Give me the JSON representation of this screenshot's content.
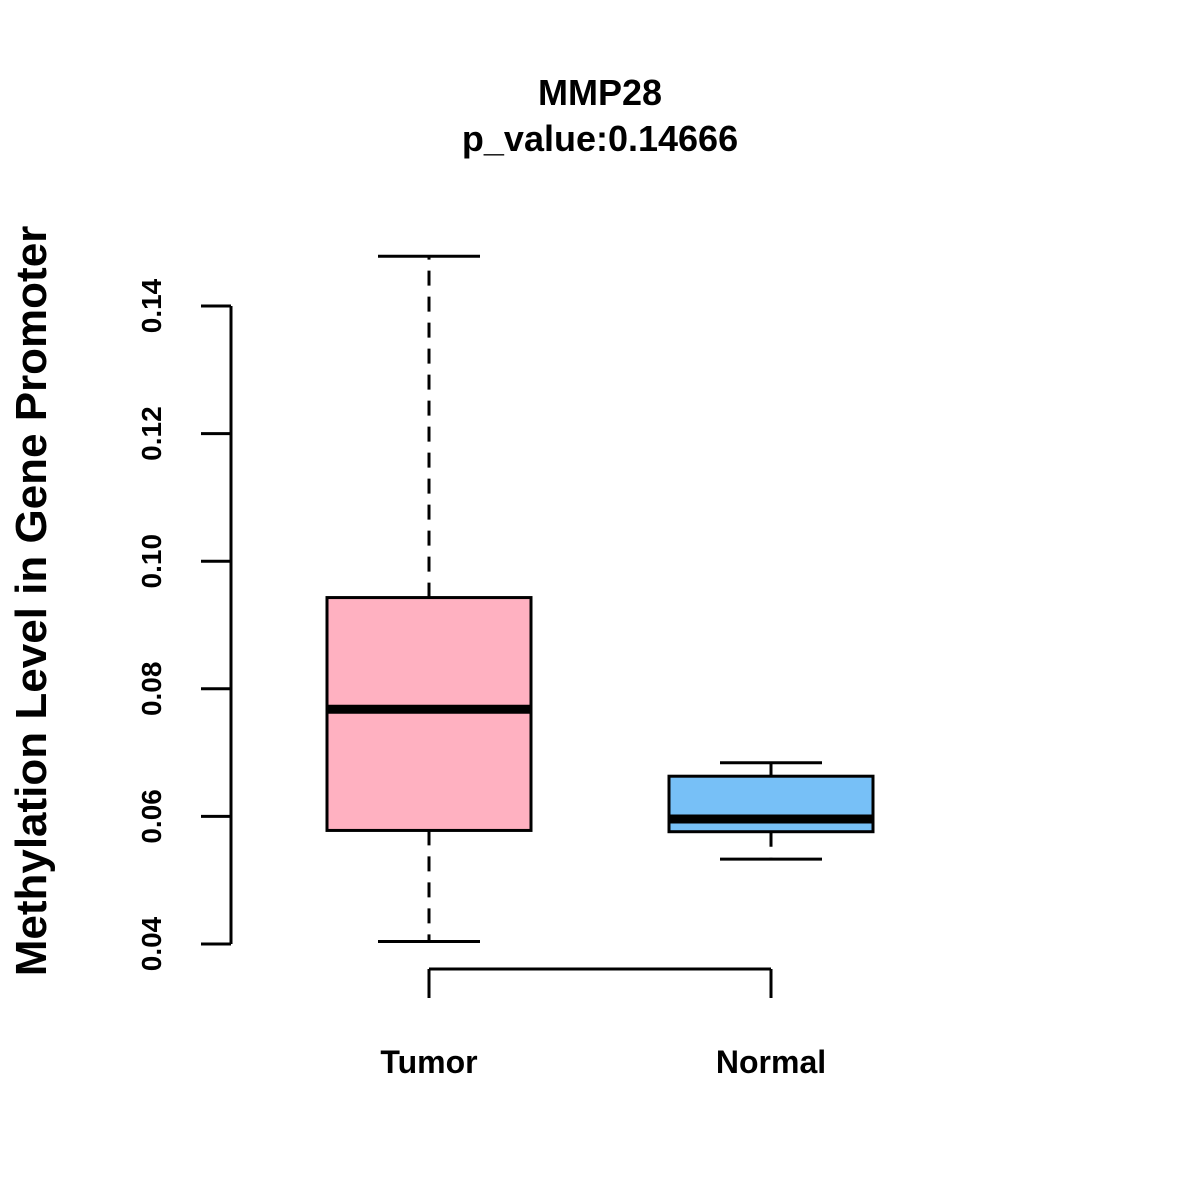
{
  "chart_data": {
    "type": "boxplot",
    "title": "MMP28",
    "subtitle": "p_value:0.14666",
    "xlabel": "",
    "ylabel": "Methylation Level in Gene Promoter",
    "ylim": [
      0.04,
      0.14
    ],
    "yticks": [
      0.04,
      0.06,
      0.08,
      0.1,
      0.12,
      0.14
    ],
    "ytick_labels": [
      "0.04",
      "0.06",
      "0.08",
      "0.10",
      "0.12",
      "0.14"
    ],
    "categories": [
      "Tumor",
      "Normal"
    ],
    "boxes": [
      {
        "name": "Tumor",
        "whisker_low": 0.0404,
        "q1": 0.0578,
        "median": 0.0768,
        "q3": 0.0943,
        "whisker_high": 0.1478,
        "color": "#FFB1C1"
      },
      {
        "name": "Normal",
        "whisker_low": 0.0533,
        "q1": 0.0576,
        "median": 0.0596,
        "q3": 0.0663,
        "whisker_high": 0.0684,
        "color": "#77C0F7"
      }
    ],
    "grid": false,
    "legend": "none",
    "comparison_bracket": [
      "Tumor",
      "Normal"
    ]
  }
}
